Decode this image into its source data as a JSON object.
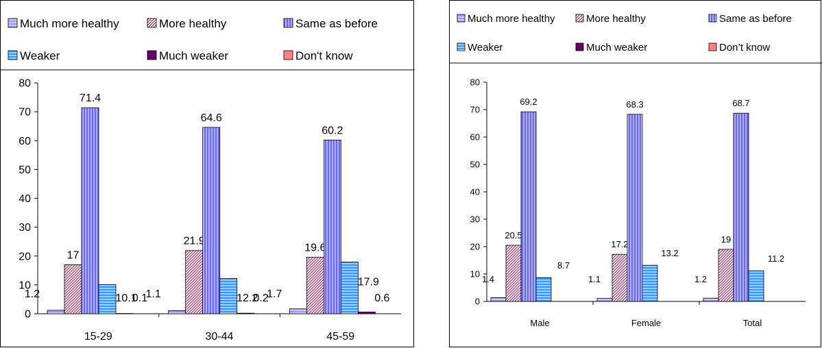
{
  "colors": {
    "much_more_healthy": "#9999ff",
    "more_healthy": "#993366",
    "same_as_before": "#6666ff",
    "weaker": "#3399ff",
    "much_weaker": "#660066",
    "dont_know": "#ff8080"
  },
  "chart_data": [
    {
      "type": "bar",
      "legend_position": "top",
      "categories": [
        "15-29",
        "30-44",
        "45-59"
      ],
      "series": [
        {
          "name": "Much more healthy",
          "values": [
            1.2,
            1.1,
            1.7
          ]
        },
        {
          "name": "More healthy",
          "values": [
            17,
            21.9,
            19.6
          ]
        },
        {
          "name": "Same as before",
          "values": [
            71.4,
            64.6,
            60.2
          ]
        },
        {
          "name": "Weaker",
          "values": [
            10.1,
            12.2,
            17.9
          ]
        },
        {
          "name": "Much weaker",
          "values": [
            0.1,
            0.2,
            0.6
          ]
        },
        {
          "name": "Don't know",
          "values": [
            0,
            0,
            0
          ]
        }
      ],
      "data_labels": [
        [
          "1.2",
          "17",
          "71.4",
          "10.1",
          "0.1",
          ""
        ],
        [
          "1.1",
          "21.9",
          "64.6",
          "12.2",
          "0.2",
          ""
        ],
        [
          "1.7",
          "19.6",
          "60.2",
          "17.9",
          "0.6",
          ""
        ]
      ],
      "ylim": [
        0,
        80
      ],
      "yticks": [
        0,
        10,
        20,
        30,
        40,
        50,
        60,
        70,
        80
      ],
      "grid": false
    },
    {
      "type": "bar",
      "legend_position": "top",
      "categories": [
        "Male",
        "Female",
        "Total"
      ],
      "series": [
        {
          "name": "Much more healthy",
          "values": [
            1.4,
            1.1,
            1.2
          ]
        },
        {
          "name": "More healthy",
          "values": [
            20.5,
            17.2,
            19
          ]
        },
        {
          "name": "Same as before",
          "values": [
            69.2,
            68.3,
            68.7
          ]
        },
        {
          "name": "Weaker",
          "values": [
            8.7,
            13.2,
            11.2
          ]
        },
        {
          "name": "Much weaker",
          "values": [
            0,
            0,
            0
          ]
        },
        {
          "name": "Don’t know",
          "values": [
            0,
            0,
            0
          ]
        }
      ],
      "data_labels": [
        [
          "1.4",
          "20.5",
          "69.2",
          "8.7",
          "",
          ""
        ],
        [
          "1.1",
          "17.2",
          "68.3",
          "13.2",
          "",
          ""
        ],
        [
          "1.2",
          "19",
          "68.7",
          "11.2",
          "",
          ""
        ]
      ],
      "ylim": [
        0,
        80
      ],
      "yticks": [
        0,
        10,
        20,
        30,
        40,
        50,
        60,
        70,
        80
      ],
      "grid": false
    }
  ]
}
